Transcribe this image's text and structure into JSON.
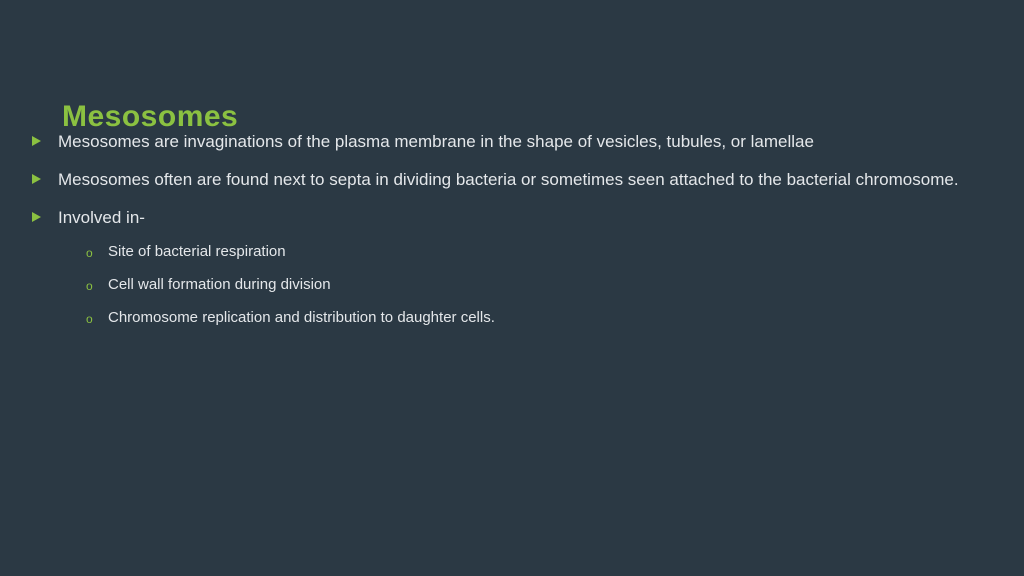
{
  "colors": {
    "background": "#2b3944",
    "accent": "#8bc141",
    "text": "#e4e7ea"
  },
  "title": "Mesosomes",
  "title_fontsize": 30,
  "body_fontsize": 17,
  "sub_fontsize": 15,
  "bullets": [
    {
      "text": "Mesosomes are invaginations of the plasma membrane in the shape of vesicles, tubules, or lamellae"
    },
    {
      "text": "Mesosomes often are found next to septa in dividing bacteria or sometimes seen attached to the bacterial chromosome."
    },
    {
      "text": "Involved in-",
      "sub": [
        "Site of bacterial respiration",
        "Cell wall formation during division",
        "Chromosome replication and distribution to daughter cells."
      ]
    }
  ]
}
